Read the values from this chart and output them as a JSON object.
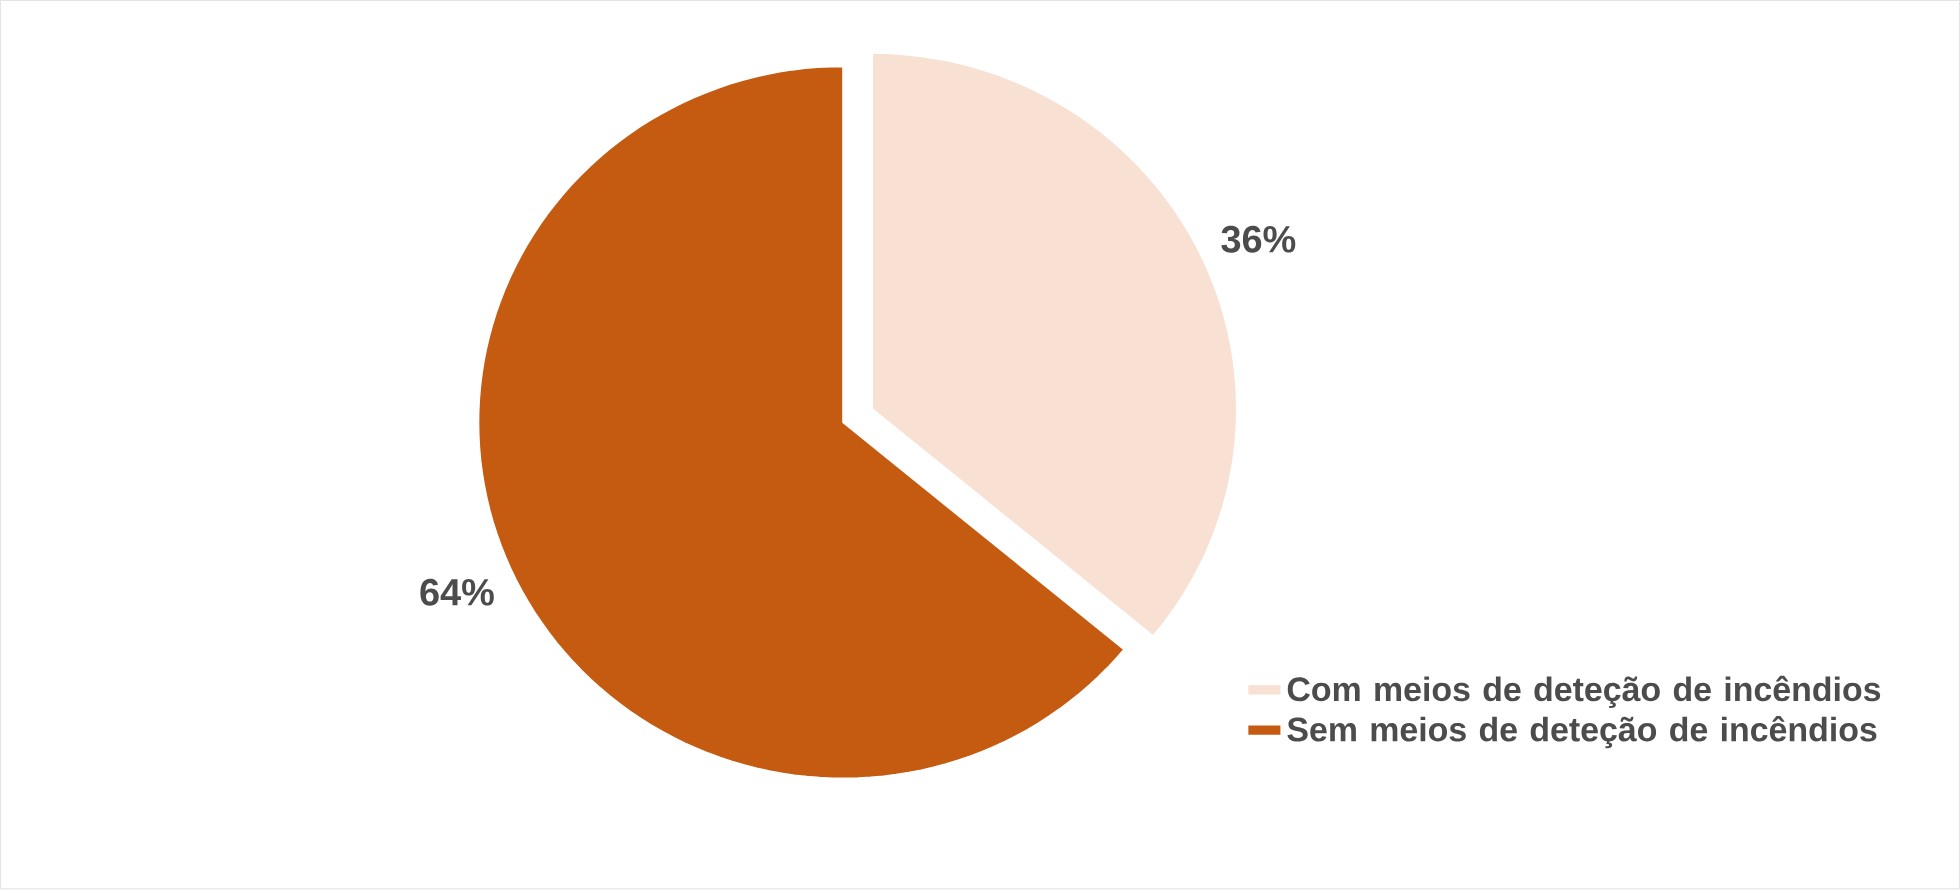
{
  "chart_data": {
    "type": "pie",
    "categories": [
      "Com meios de deteção de incêndios",
      "Sem meios de deteção de incêndios"
    ],
    "values": [
      36,
      64
    ],
    "colors": [
      "#f8e0d2",
      "#c55a11"
    ],
    "value_labels": [
      "36%",
      "64%"
    ],
    "legend": "bottom right"
  }
}
